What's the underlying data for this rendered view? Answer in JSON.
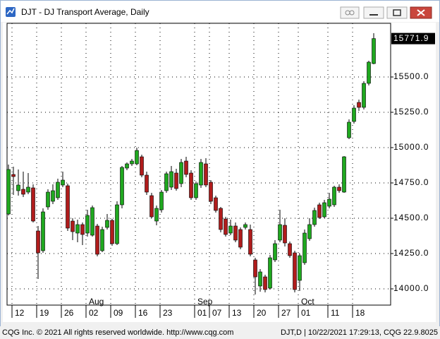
{
  "window": {
    "title": "DJT - DJ Transport Average, Daily"
  },
  "footer": {
    "left": "CQG Inc. © 2021 All rights reserved worldwide. http://www.cqg.com",
    "right": "DJT,D | 10/22/2021 17:29:13, CQG 22.9.8025"
  },
  "chart_data": {
    "type": "candlestick",
    "categories": [
      null,
      "12",
      null,
      null,
      null,
      null,
      "19",
      null,
      null,
      null,
      null,
      "26",
      null,
      null,
      null,
      null,
      "02",
      null,
      null,
      null,
      null,
      "09",
      null,
      null,
      null,
      null,
      "16",
      null,
      null,
      null,
      null,
      "23",
      null,
      null,
      null,
      null,
      null,
      null,
      "01",
      null,
      null,
      "07",
      null,
      null,
      null,
      "13",
      null,
      null,
      null,
      null,
      "20",
      null,
      null,
      null,
      null,
      "27",
      null,
      null,
      null,
      "01",
      null,
      null,
      null,
      null,
      null,
      "11",
      null,
      null,
      null,
      null,
      "18",
      null,
      null,
      null,
      null
    ],
    "months": [
      null,
      null,
      null,
      null,
      null,
      null,
      null,
      null,
      null,
      null,
      null,
      null,
      null,
      null,
      null,
      null,
      "Aug",
      null,
      null,
      null,
      null,
      null,
      null,
      null,
      null,
      null,
      null,
      null,
      null,
      null,
      null,
      null,
      null,
      null,
      null,
      null,
      null,
      null,
      "Sep",
      null,
      null,
      null,
      null,
      null,
      null,
      null,
      null,
      null,
      null,
      null,
      null,
      null,
      null,
      null,
      null,
      null,
      null,
      null,
      null,
      "Oct",
      null,
      null,
      null,
      null,
      null,
      null,
      null,
      null,
      null,
      null,
      null,
      null,
      null,
      null,
      null
    ],
    "open": [
      14530,
      14810,
      14695,
      14705,
      14685,
      14715,
      14410,
      14270,
      14580,
      14620,
      14645,
      14735,
      14730,
      14480,
      14395,
      14455,
      14395,
      14380,
      14445,
      14270,
      14435,
      14485,
      14320,
      14595,
      14855,
      14885,
      14885,
      14935,
      14805,
      14660,
      14480,
      14560,
      14695,
      14720,
      14820,
      14745,
      14905,
      14820,
      14645,
      14735,
      14885,
      14755,
      14645,
      14570,
      14495,
      14395,
      14445,
      14420,
      14435,
      14420,
      14205,
      14020,
      14085,
      14005,
      14205,
      14345,
      14450,
      14320,
      14255,
      14060,
      14185,
      14355,
      14455,
      14595,
      14510,
      14585,
      14595,
      14720,
      14685,
      15070,
      15185,
      15320,
      15285,
      15455,
      15595
    ],
    "high": [
      14880,
      14865,
      14845,
      14830,
      14820,
      14740,
      14445,
      14570,
      14705,
      14740,
      14780,
      14830,
      14745,
      14500,
      14490,
      14470,
      14560,
      14590,
      14460,
      14440,
      14530,
      14495,
      14620,
      14870,
      14895,
      14920,
      15000,
      14950,
      14830,
      14680,
      14590,
      14700,
      14830,
      14870,
      14850,
      14920,
      14935,
      14840,
      14760,
      14920,
      14925,
      14770,
      14660,
      14580,
      14510,
      14490,
      14470,
      14435,
      14470,
      14455,
      14220,
      14140,
      14100,
      14240,
      14345,
      14560,
      14500,
      14335,
      14270,
      14250,
      14420,
      14500,
      14575,
      14610,
      14630,
      14680,
      14730,
      14740,
      14940,
      15200,
      15300,
      15340,
      15470,
      15615,
      15810
    ],
    "low": [
      14520,
      14665,
      14660,
      14650,
      14670,
      14470,
      14070,
      14255,
      14560,
      14600,
      14630,
      14720,
      14410,
      14345,
      14330,
      14310,
      14370,
      14370,
      14230,
      14260,
      14420,
      14305,
      14310,
      14570,
      14840,
      14870,
      14875,
      14790,
      14665,
      14500,
      14450,
      14540,
      14680,
      14700,
      14695,
      14720,
      14790,
      14630,
      14630,
      14715,
      14720,
      14600,
      14540,
      14400,
      14370,
      14380,
      14330,
      14280,
      14420,
      14230,
      13960,
      13980,
      13975,
      13995,
      14190,
      14330,
      14300,
      14220,
      13975,
      13985,
      14170,
      14340,
      14440,
      14495,
      14500,
      14570,
      14580,
      14680,
      14680,
      15060,
      15170,
      15260,
      15270,
      15440,
      15590
    ],
    "close": [
      14845,
      14795,
      14735,
      14670,
      14720,
      14480,
      14255,
      14545,
      14685,
      14695,
      14755,
      14770,
      14430,
      14405,
      14455,
      14385,
      14520,
      14575,
      14245,
      14420,
      14485,
      14320,
      14595,
      14860,
      14885,
      14905,
      14980,
      14805,
      14685,
      14510,
      14570,
      14685,
      14815,
      14830,
      14710,
      14895,
      14810,
      14645,
      14745,
      14895,
      14735,
      14620,
      14555,
      14420,
      14385,
      14445,
      14345,
      14295,
      14455,
      14245,
      14085,
      14120,
      13995,
      14220,
      14320,
      14455,
      14325,
      14235,
      13995,
      14235,
      14395,
      14455,
      14555,
      14505,
      14610,
      14635,
      14720,
      14695,
      14935,
      15180,
      15280,
      15285,
      15455,
      15605,
      15771.9
    ],
    "up_color": "#1fa81f",
    "down_color": "#b01c1c",
    "ylim": [
      13885,
      15880
    ],
    "yticks": [
      {
        "value": 14000,
        "label": "14000.0"
      },
      {
        "value": 14250,
        "label": "14250.0"
      },
      {
        "value": 14500,
        "label": "14500.0"
      },
      {
        "value": 14750,
        "label": "14750.0"
      },
      {
        "value": 15000,
        "label": "15000.0"
      },
      {
        "value": 15250,
        "label": "15250.0"
      },
      {
        "value": 15500,
        "label": "15500.0"
      }
    ],
    "grid": true
  }
}
